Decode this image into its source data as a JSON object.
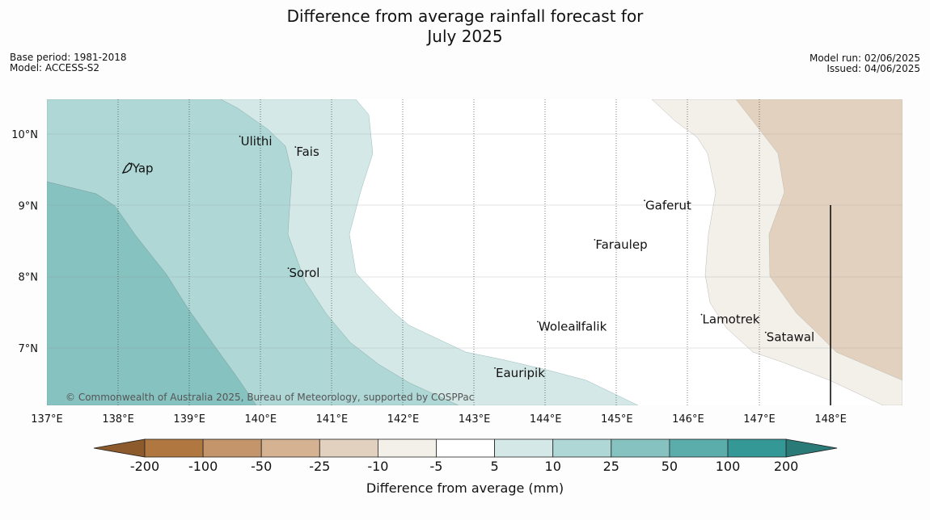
{
  "title_line1": "Difference from average rainfall forecast for",
  "title_line2": "July 2025",
  "base_period": "Base period: 1981-2018",
  "model": "Model: ACCESS-S2",
  "model_run": "Model run: 02/06/2025",
  "issued": "Issued: 04/06/2025",
  "copyright": "© Commonwealth of Australia 2025, Bureau of Meteorology, supported by COSPPac",
  "lon_ticks": [
    "137°E",
    "138°E",
    "139°E",
    "140°E",
    "141°E",
    "142°E",
    "143°E",
    "144°E",
    "145°E",
    "146°E",
    "147°E",
    "148°E"
  ],
  "lat_ticks": [
    "10°N",
    "9°N",
    "8°N",
    "7°N"
  ],
  "places": [
    {
      "name": "Yap",
      "lon": 138.2,
      "lat": 9.52
    },
    {
      "name": "Ulithi",
      "lon": 139.72,
      "lat": 9.9
    },
    {
      "name": "Fais",
      "lon": 140.5,
      "lat": 9.75
    },
    {
      "name": "Gaferut",
      "lon": 145.4,
      "lat": 9.0
    },
    {
      "name": "Faraulep",
      "lon": 144.7,
      "lat": 8.45
    },
    {
      "name": "Sorol",
      "lon": 140.4,
      "lat": 8.05
    },
    {
      "name": "Woleai",
      "lon": 143.9,
      "lat": 7.3
    },
    {
      "name": "Ifalik",
      "lon": 144.45,
      "lat": 7.3
    },
    {
      "name": "Lamotrek",
      "lon": 146.2,
      "lat": 7.4
    },
    {
      "name": "Satawal",
      "lon": 147.1,
      "lat": 7.15
    },
    {
      "name": "Eauripik",
      "lon": 143.3,
      "lat": 6.65
    }
  ],
  "legend": {
    "title": "Difference from average (mm)",
    "bounds": [
      "-200",
      "-100",
      "-50",
      "-25",
      "-10",
      "-5",
      "5",
      "10",
      "25",
      "50",
      "100",
      "200"
    ],
    "colors": [
      "#8c5a2b",
      "#b07840",
      "#c4956a",
      "#d4b292",
      "#e3d1c0",
      "#f3efe9",
      "#ffffff",
      "#d4e9e7",
      "#aed7d6",
      "#86c2c0",
      "#5aadab",
      "#349896",
      "#2a7a78"
    ]
  }
}
